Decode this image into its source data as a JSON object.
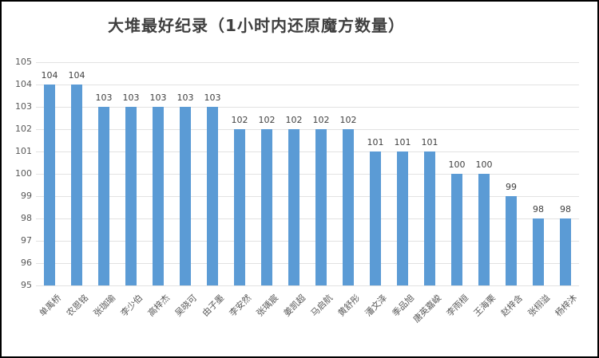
{
  "chart_data": {
    "type": "bar",
    "title": "大堆最好纪录（1小时内还原魔方数量）",
    "categories": [
      "单禹桥",
      "农恩铭",
      "张珈瑜",
      "李少伯",
      "高梓杰",
      "吴晓可",
      "由子墨",
      "李安然",
      "张瑀宸",
      "姜凯超",
      "马启航",
      "黄舒彤",
      "潘文泽",
      "季品旭",
      "唐英嘉峻",
      "李雨桓",
      "王海栗",
      "赵梓含",
      "张栩溢",
      "杨梓沐"
    ],
    "values": [
      104,
      104,
      103,
      103,
      103,
      103,
      103,
      102,
      102,
      102,
      102,
      102,
      101,
      101,
      101,
      100,
      100,
      99,
      98,
      98
    ],
    "xlabel": "",
    "ylabel": "",
    "ylim": [
      95,
      105
    ],
    "ytick_step": 1,
    "yticks": [
      95,
      96,
      97,
      98,
      99,
      100,
      101,
      102,
      103,
      104,
      105
    ],
    "grid": true,
    "legend_position": "none",
    "data_labels": true,
    "colors": {
      "bar": "#5b9bd5",
      "gridline": "#e2e2e2",
      "axis_label": "#595959",
      "value_label": "#404040",
      "title": "#3f3f3f",
      "background": "#ffffff",
      "frame_border": "#000000"
    }
  }
}
